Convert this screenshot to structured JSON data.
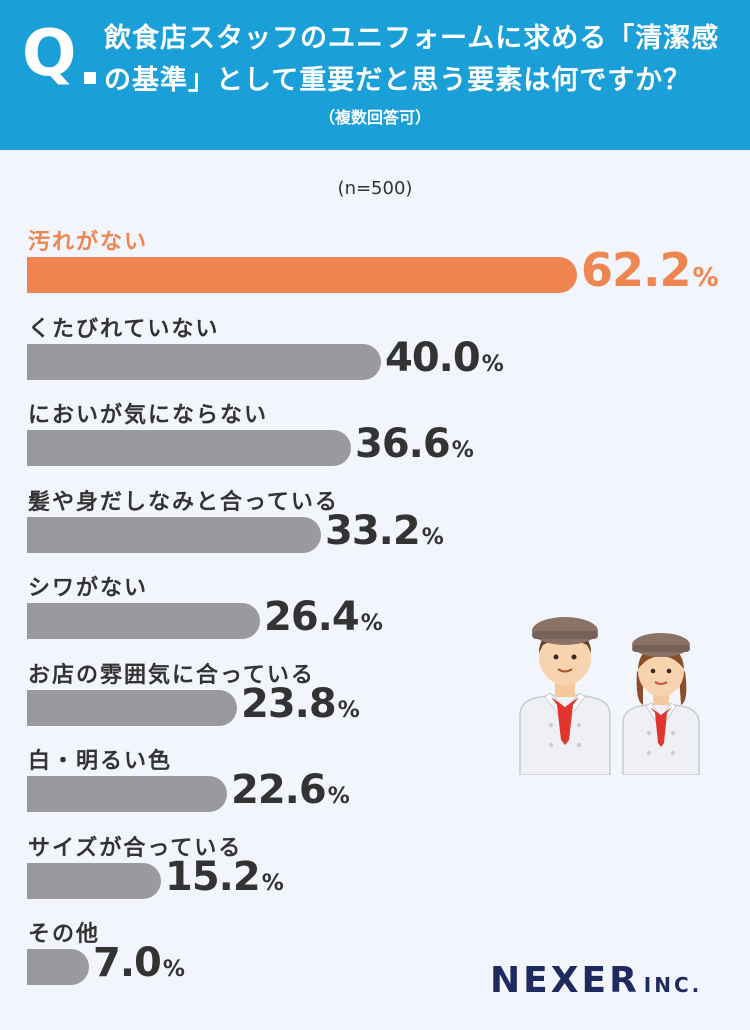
{
  "header": {
    "q_letter": "Q",
    "question": "飲食店スタッフのユニフォームに求める「清潔感の基準」として重要だと思う要素は何ですか？",
    "note": "（複数回答可）"
  },
  "sample": "(n=500)",
  "chart_data": {
    "type": "bar",
    "orientation": "horizontal",
    "title": "飲食店スタッフのユニフォームに求める「清潔感の基準」として重要だと思う要素は何ですか？",
    "categories": [
      "汚れがない",
      "くたびれていない",
      "においが気にならない",
      "髪や身だしなみと合っている",
      "シワがない",
      "お店の雰囲気に合っている",
      "白・明るい色",
      "サイズが合っている",
      "その他"
    ],
    "values": [
      62.2,
      40.0,
      36.6,
      33.2,
      26.4,
      23.8,
      22.6,
      15.2,
      7.0
    ],
    "unit": "%",
    "xlim": [
      0,
      100
    ],
    "highlight_index": 0,
    "colors": {
      "highlight": "#ef8550",
      "default": "#9a9a9e"
    }
  },
  "logo": {
    "main": "NEXER",
    "suffix": "INC."
  }
}
